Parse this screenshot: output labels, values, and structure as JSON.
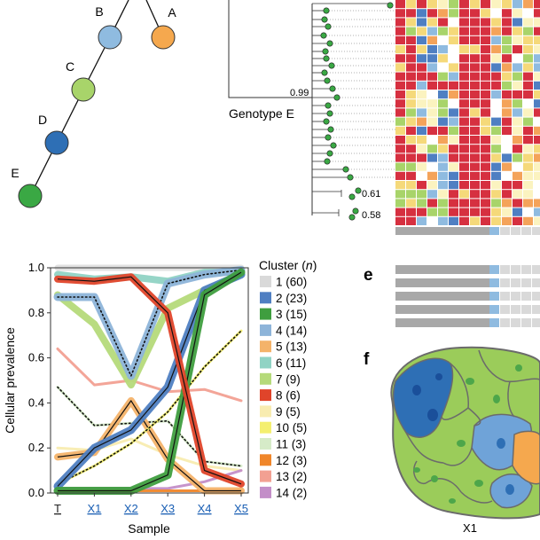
{
  "tree": {
    "nodes": [
      {
        "label": "B",
        "color": "#8fbbe0"
      },
      {
        "label": "A",
        "color": "#f5a84e"
      },
      {
        "label": "C",
        "color": "#a8d46a"
      },
      {
        "label": "D",
        "color": "#2e6fb5"
      },
      {
        "label": "E",
        "color": "#3aa844"
      }
    ]
  },
  "phylogeny": {
    "genotype_label": "Genotype E",
    "support_values": [
      "0.99",
      "0.61",
      "0.58"
    ]
  },
  "panel_labels": {
    "e": "e",
    "f": "f"
  },
  "section_f": {
    "caption": "X1"
  },
  "legend": {
    "title_prefix": "Cluster (",
    "title_n": "n",
    "title_suffix": ")",
    "items": [
      {
        "label": "1 (60)",
        "color": "#d9d9d9"
      },
      {
        "label": "2 (23)",
        "color": "#4f7fc2"
      },
      {
        "label": "3 (15)",
        "color": "#3f9e3f"
      },
      {
        "label": "4 (14)",
        "color": "#8db4d9"
      },
      {
        "label": "5 (13)",
        "color": "#f4b36a"
      },
      {
        "label": "6 (11)",
        "color": "#90d3c4"
      },
      {
        "label": "7 (9)",
        "color": "#b5da7a"
      },
      {
        "label": "8 (6)",
        "color": "#e0442a"
      },
      {
        "label": "9 (5)",
        "color": "#f8ecb0"
      },
      {
        "label": "10 (5)",
        "color": "#f4ef70"
      },
      {
        "label": "11 (3)",
        "color": "#d6ebc8"
      },
      {
        "label": "12 (3)",
        "color": "#f0862a"
      },
      {
        "label": "13 (2)",
        "color": "#f2a092"
      },
      {
        "label": "14 (2)",
        "color": "#c38ec8"
      }
    ]
  },
  "chart_data": {
    "type": "line",
    "xlabel": "Sample",
    "ylabel": "Cellular prevalence",
    "categories": [
      "T",
      "X1",
      "X2",
      "X3",
      "X4",
      "X5"
    ],
    "ylim": [
      0,
      1.0
    ],
    "yticks": [
      "0.0",
      "0.2",
      "0.4",
      "0.6",
      "0.8",
      "1.0"
    ],
    "series": [
      {
        "name": "1 (60)",
        "color": "#d9d9d9",
        "values": [
          1.0,
          1.0,
          1.0,
          1.0,
          1.0,
          1.0
        ]
      },
      {
        "name": "2 (23)",
        "color": "#4f7fc2",
        "values": [
          0.03,
          0.2,
          0.28,
          0.47,
          0.9,
          0.97
        ]
      },
      {
        "name": "3 (15)",
        "color": "#3f9e3f",
        "values": [
          0.01,
          0.01,
          0.01,
          0.08,
          0.88,
          0.98
        ]
      },
      {
        "name": "4 (14)",
        "color": "#8db4d9",
        "values": [
          0.87,
          0.87,
          0.52,
          0.93,
          0.97,
          0.99
        ]
      },
      {
        "name": "5 (13)",
        "color": "#f4b36a",
        "values": [
          0.16,
          0.18,
          0.41,
          0.15,
          0.01,
          0.01
        ]
      },
      {
        "name": "6 (11)",
        "color": "#90d3c4",
        "values": [
          0.97,
          0.95,
          0.96,
          0.94,
          0.98,
          0.98
        ]
      },
      {
        "name": "7 (9)",
        "color": "#b5da7a",
        "values": [
          0.88,
          0.75,
          0.48,
          0.82,
          0.9,
          0.97
        ]
      },
      {
        "name": "8 (6)",
        "color": "#e0442a",
        "values": [
          0.95,
          0.94,
          0.96,
          0.8,
          0.1,
          0.04
        ]
      },
      {
        "name": "9 (5)",
        "color": "#f8ecb0",
        "values": [
          0.2,
          0.19,
          0.24,
          0.17,
          0.12,
          0.1
        ]
      },
      {
        "name": "10 (5)",
        "color": "#f4ef70",
        "values": [
          0.04,
          0.12,
          0.22,
          0.36,
          0.56,
          0.72
        ]
      },
      {
        "name": "11 (3)",
        "color": "#d6ebc8",
        "values": [
          0.47,
          0.3,
          0.31,
          0.32,
          0.14,
          0.12
        ]
      },
      {
        "name": "12 (3)",
        "color": "#f0862a",
        "values": [
          0.01,
          0.01,
          0.01,
          0.01,
          0.01,
          0.01
        ]
      },
      {
        "name": "13 (2)",
        "color": "#f2a092",
        "values": [
          0.64,
          0.48,
          0.5,
          0.45,
          0.46,
          0.41
        ]
      },
      {
        "name": "14 (2)",
        "color": "#c38ec8",
        "values": [
          0.02,
          0.02,
          0.02,
          0.02,
          0.05,
          0.1
        ]
      }
    ]
  }
}
